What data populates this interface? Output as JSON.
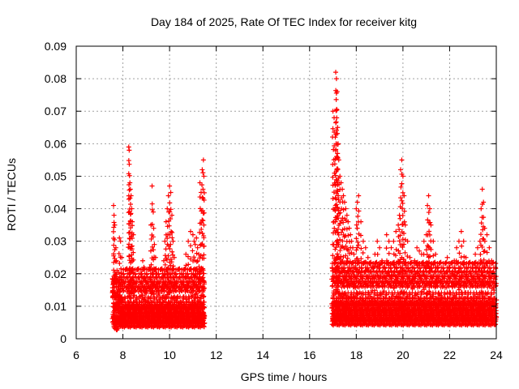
{
  "chart_data": {
    "type": "scatter",
    "title": "Day 184 of 2025, Rate Of TEC Index for receiver kitg",
    "xlabel": "GPS time / hours",
    "ylabel": "ROTI / TECUs",
    "xlim": [
      6,
      24
    ],
    "ylim": [
      0,
      0.09
    ],
    "xticks": [
      6,
      8,
      10,
      12,
      14,
      16,
      18,
      20,
      22,
      24
    ],
    "xtick_labels": [
      "6",
      "8",
      "10",
      "12",
      "14",
      "16",
      "18",
      "20",
      "22",
      "24"
    ],
    "yticks": [
      0,
      0.01,
      0.02,
      0.03,
      0.04,
      0.05,
      0.06,
      0.07,
      0.08,
      0.09
    ],
    "ytick_labels": [
      "0",
      "0.01",
      "0.02",
      "0.03",
      "0.04",
      "0.05",
      "0.06",
      "0.07",
      "0.08",
      "0.09"
    ],
    "grid": true,
    "marker": "+",
    "color": "#ff0000",
    "series": [
      {
        "name": "ROTI",
        "points": [
          [
            7.6,
            0.041
          ],
          [
            7.62,
            0.038
          ],
          [
            7.65,
            0.035
          ],
          [
            7.7,
            0.028
          ],
          [
            7.72,
            0.024
          ],
          [
            7.75,
            0.021
          ],
          [
            7.78,
            0.018
          ],
          [
            7.8,
            0.015
          ],
          [
            7.85,
            0.031
          ],
          [
            7.9,
            0.03
          ],
          [
            7.95,
            0.025
          ],
          [
            8.0,
            0.012
          ],
          [
            8.05,
            0.01
          ],
          [
            8.1,
            0.008
          ],
          [
            8.2,
            0.007
          ],
          [
            8.25,
            0.059
          ],
          [
            8.27,
            0.058
          ],
          [
            8.3,
            0.048
          ],
          [
            8.32,
            0.046
          ],
          [
            8.35,
            0.044
          ],
          [
            8.38,
            0.04
          ],
          [
            8.4,
            0.036
          ],
          [
            8.45,
            0.032
          ],
          [
            8.5,
            0.017
          ],
          [
            8.55,
            0.015
          ],
          [
            8.6,
            0.012
          ],
          [
            8.65,
            0.01
          ],
          [
            8.7,
            0.009
          ],
          [
            8.75,
            0.013
          ],
          [
            8.8,
            0.02
          ],
          [
            8.85,
            0.024
          ],
          [
            8.9,
            0.022
          ],
          [
            8.95,
            0.018
          ],
          [
            9.0,
            0.014
          ],
          [
            9.05,
            0.011
          ],
          [
            9.1,
            0.016
          ],
          [
            9.15,
            0.022
          ],
          [
            9.2,
            0.035
          ],
          [
            9.25,
            0.047
          ],
          [
            9.3,
            0.039
          ],
          [
            9.35,
            0.029
          ],
          [
            9.4,
            0.025
          ],
          [
            9.45,
            0.02
          ],
          [
            9.5,
            0.017
          ],
          [
            9.55,
            0.014
          ],
          [
            9.6,
            0.012
          ],
          [
            9.65,
            0.015
          ],
          [
            9.7,
            0.021
          ],
          [
            9.75,
            0.024
          ],
          [
            9.8,
            0.03
          ],
          [
            9.85,
            0.036
          ],
          [
            9.9,
            0.04
          ],
          [
            9.95,
            0.044
          ],
          [
            10.0,
            0.047
          ],
          [
            10.05,
            0.045
          ],
          [
            10.1,
            0.038
          ],
          [
            10.15,
            0.03
          ],
          [
            10.2,
            0.025
          ],
          [
            10.25,
            0.02
          ],
          [
            10.3,
            0.016
          ],
          [
            10.35,
            0.013
          ],
          [
            10.4,
            0.011
          ],
          [
            10.5,
            0.015
          ],
          [
            10.6,
            0.02
          ],
          [
            10.7,
            0.026
          ],
          [
            10.8,
            0.03
          ],
          [
            10.9,
            0.033
          ],
          [
            11.0,
            0.032
          ],
          [
            11.05,
            0.03
          ],
          [
            11.1,
            0.029
          ],
          [
            11.15,
            0.031
          ],
          [
            11.2,
            0.028
          ],
          [
            11.25,
            0.026
          ],
          [
            11.3,
            0.048
          ],
          [
            11.35,
            0.045
          ],
          [
            11.4,
            0.052
          ],
          [
            11.45,
            0.055
          ],
          [
            11.47,
            0.05
          ],
          [
            11.5,
            0.007
          ],
          [
            17.0,
            0.07
          ],
          [
            17.05,
            0.068
          ],
          [
            17.1,
            0.062
          ],
          [
            17.12,
            0.082
          ],
          [
            17.15,
            0.08
          ],
          [
            17.18,
            0.076
          ],
          [
            17.2,
            0.065
          ],
          [
            17.22,
            0.06
          ],
          [
            17.25,
            0.055
          ],
          [
            17.3,
            0.05
          ],
          [
            17.35,
            0.048
          ],
          [
            17.4,
            0.046
          ],
          [
            17.45,
            0.044
          ],
          [
            17.5,
            0.042
          ],
          [
            17.55,
            0.04
          ],
          [
            17.6,
            0.038
          ],
          [
            17.65,
            0.036
          ],
          [
            17.7,
            0.034
          ],
          [
            17.75,
            0.032
          ],
          [
            17.8,
            0.03
          ],
          [
            17.85,
            0.028
          ],
          [
            17.9,
            0.026
          ],
          [
            17.95,
            0.024
          ],
          [
            18.0,
            0.04
          ],
          [
            18.05,
            0.042
          ],
          [
            18.1,
            0.044
          ],
          [
            18.2,
            0.036
          ],
          [
            18.3,
            0.03
          ],
          [
            18.4,
            0.028
          ],
          [
            18.5,
            0.025
          ],
          [
            18.6,
            0.023
          ],
          [
            18.7,
            0.022
          ],
          [
            18.8,
            0.026
          ],
          [
            18.9,
            0.03
          ],
          [
            19.0,
            0.028
          ],
          [
            19.1,
            0.024
          ],
          [
            19.2,
            0.022
          ],
          [
            19.3,
            0.032
          ],
          [
            19.4,
            0.03
          ],
          [
            19.5,
            0.028
          ],
          [
            19.6,
            0.03
          ],
          [
            19.7,
            0.033
          ],
          [
            19.8,
            0.035
          ],
          [
            19.85,
            0.038
          ],
          [
            19.9,
            0.052
          ],
          [
            19.95,
            0.055
          ],
          [
            20.0,
            0.05
          ],
          [
            20.05,
            0.044
          ],
          [
            20.1,
            0.035
          ],
          [
            20.2,
            0.03
          ],
          [
            20.3,
            0.025
          ],
          [
            20.4,
            0.022
          ],
          [
            20.5,
            0.024
          ],
          [
            20.6,
            0.028
          ],
          [
            20.7,
            0.027
          ],
          [
            20.8,
            0.026
          ],
          [
            20.9,
            0.03
          ],
          [
            21.0,
            0.032
          ],
          [
            21.05,
            0.041
          ],
          [
            21.1,
            0.044
          ],
          [
            21.15,
            0.04
          ],
          [
            21.2,
            0.035
          ],
          [
            21.3,
            0.03
          ],
          [
            21.4,
            0.026
          ],
          [
            21.5,
            0.022
          ],
          [
            21.6,
            0.018
          ],
          [
            21.7,
            0.016
          ],
          [
            21.8,
            0.02
          ],
          [
            21.9,
            0.025
          ],
          [
            22.0,
            0.022
          ],
          [
            22.1,
            0.02
          ],
          [
            22.2,
            0.024
          ],
          [
            22.3,
            0.028
          ],
          [
            22.4,
            0.03
          ],
          [
            22.5,
            0.033
          ],
          [
            22.6,
            0.03
          ],
          [
            22.7,
            0.025
          ],
          [
            22.8,
            0.022
          ],
          [
            22.9,
            0.02
          ],
          [
            23.0,
            0.023
          ],
          [
            23.1,
            0.026
          ],
          [
            23.2,
            0.028
          ],
          [
            23.3,
            0.03
          ],
          [
            23.35,
            0.04
          ],
          [
            23.4,
            0.046
          ],
          [
            23.45,
            0.042
          ],
          [
            23.5,
            0.034
          ],
          [
            23.6,
            0.032
          ],
          [
            23.7,
            0.028
          ],
          [
            23.8,
            0.024
          ],
          [
            23.9,
            0.019
          ],
          [
            24.0,
            0.017
          ]
        ]
      }
    ],
    "dense_segments": [
      {
        "x_start": 7.55,
        "x_end": 11.5,
        "y_low": 0.0025,
        "y_high": 0.022
      },
      {
        "x_start": 16.95,
        "x_end": 24.0,
        "y_low": 0.003,
        "y_high": 0.024
      }
    ]
  }
}
